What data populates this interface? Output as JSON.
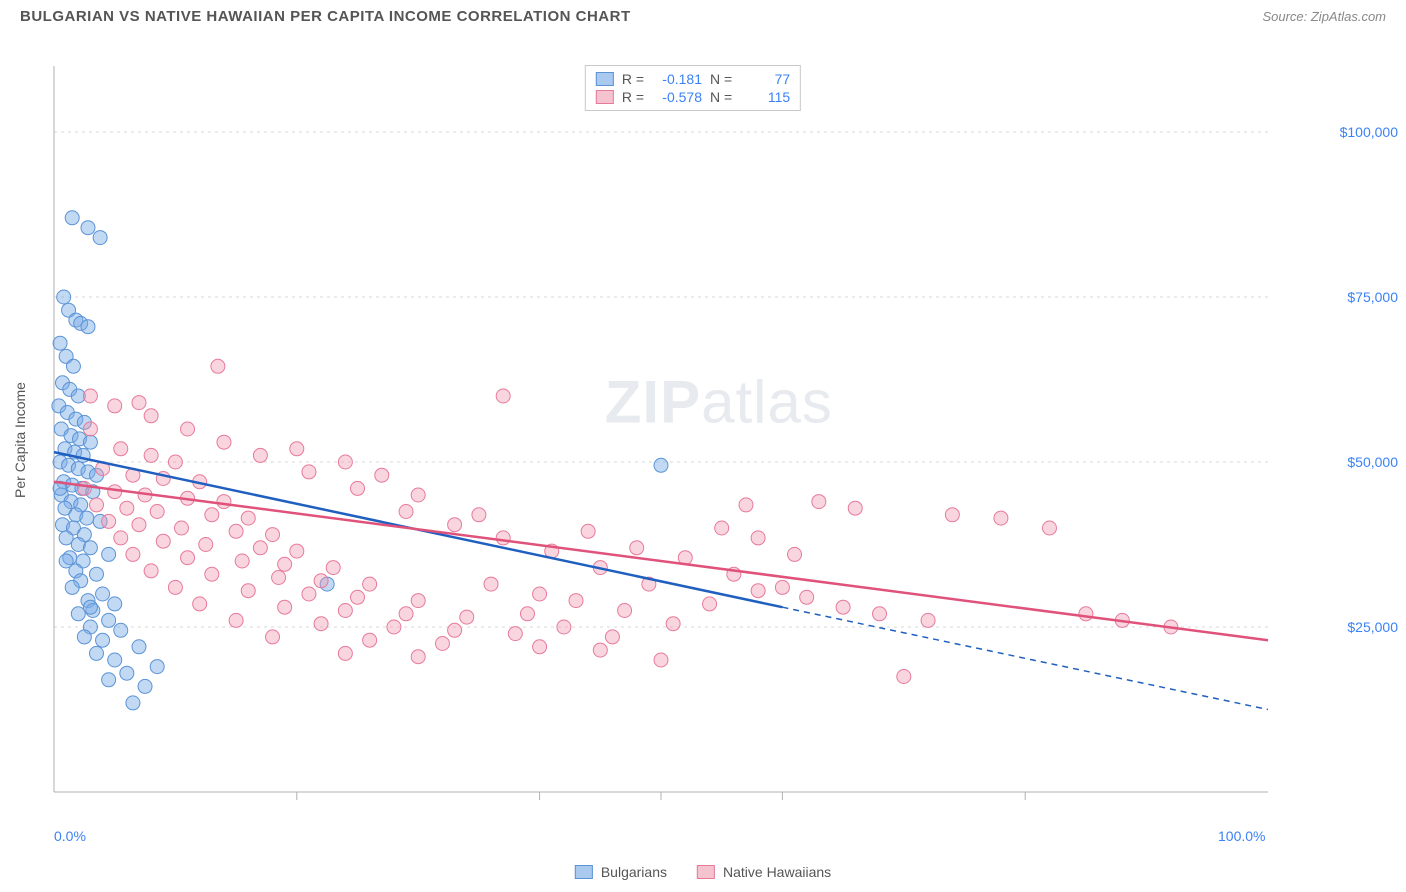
{
  "header": {
    "title": "BULGARIAN VS NATIVE HAWAIIAN PER CAPITA INCOME CORRELATION CHART",
    "source": "Source: ZipAtlas.com"
  },
  "chart": {
    "type": "scatter",
    "ylabel": "Per Capita Income",
    "xlim": [
      0,
      100
    ],
    "ylim": [
      0,
      110000
    ],
    "xtick_labels": [
      "0.0%",
      "100.0%"
    ],
    "xtick_positions": [
      0,
      100
    ],
    "xtick_minor": [
      20,
      40,
      50,
      60,
      80
    ],
    "ytick_labels": [
      "$25,000",
      "$50,000",
      "$75,000",
      "$100,000"
    ],
    "ytick_values": [
      25000,
      50000,
      75000,
      100000
    ],
    "grid_color": "#d8d8d8",
    "axis_color": "#b0b0b0",
    "background_color": "#ffffff",
    "watermark": {
      "zip": "ZIP",
      "atlas": "atlas"
    }
  },
  "series": [
    {
      "name": "Bulgarians",
      "marker_fill": "rgba(120,170,230,0.45)",
      "marker_stroke": "#5b93d6",
      "swatch_fill": "#a9c9ef",
      "swatch_stroke": "#5b93d6",
      "R": "-0.181",
      "N": "77",
      "regression": {
        "color": "#1f5fbf",
        "solid_from": [
          0,
          51500
        ],
        "solid_to": [
          60,
          28000
        ],
        "dash_to": [
          100,
          12500
        ]
      },
      "points": [
        [
          1.5,
          87000
        ],
        [
          2.8,
          85500
        ],
        [
          3.8,
          84000
        ],
        [
          0.8,
          75000
        ],
        [
          1.2,
          73000
        ],
        [
          1.8,
          71500
        ],
        [
          2.2,
          71000
        ],
        [
          2.8,
          70500
        ],
        [
          0.5,
          68000
        ],
        [
          1.0,
          66000
        ],
        [
          1.6,
          64500
        ],
        [
          0.7,
          62000
        ],
        [
          1.3,
          61000
        ],
        [
          2.0,
          60000
        ],
        [
          0.4,
          58500
        ],
        [
          1.1,
          57500
        ],
        [
          1.8,
          56500
        ],
        [
          2.5,
          56000
        ],
        [
          0.6,
          55000
        ],
        [
          1.4,
          54000
        ],
        [
          2.1,
          53500
        ],
        [
          3.0,
          53000
        ],
        [
          0.9,
          52000
        ],
        [
          1.7,
          51500
        ],
        [
          2.4,
          51000
        ],
        [
          0.5,
          50000
        ],
        [
          1.2,
          49500
        ],
        [
          2.0,
          49000
        ],
        [
          2.8,
          48500
        ],
        [
          3.5,
          48000
        ],
        [
          0.8,
          47000
        ],
        [
          1.5,
          46500
        ],
        [
          2.3,
          46000
        ],
        [
          3.2,
          45500
        ],
        [
          0.6,
          45000
        ],
        [
          1.4,
          44000
        ],
        [
          2.2,
          43500
        ],
        [
          0.9,
          43000
        ],
        [
          1.8,
          42000
        ],
        [
          2.7,
          41500
        ],
        [
          3.8,
          41000
        ],
        [
          0.7,
          40500
        ],
        [
          1.6,
          40000
        ],
        [
          2.5,
          39000
        ],
        [
          1.0,
          38500
        ],
        [
          2.0,
          37500
        ],
        [
          3.0,
          37000
        ],
        [
          4.5,
          36000
        ],
        [
          1.3,
          35500
        ],
        [
          2.4,
          35000
        ],
        [
          1.8,
          33500
        ],
        [
          3.5,
          33000
        ],
        [
          2.2,
          32000
        ],
        [
          1.5,
          31000
        ],
        [
          4.0,
          30000
        ],
        [
          2.8,
          29000
        ],
        [
          5.0,
          28500
        ],
        [
          3.2,
          27500
        ],
        [
          2.0,
          27000
        ],
        [
          4.5,
          26000
        ],
        [
          22.5,
          31500
        ],
        [
          3.0,
          25000
        ],
        [
          5.5,
          24500
        ],
        [
          2.5,
          23500
        ],
        [
          4.0,
          23000
        ],
        [
          7.0,
          22000
        ],
        [
          3.5,
          21000
        ],
        [
          5.0,
          20000
        ],
        [
          8.5,
          19000
        ],
        [
          6.0,
          18000
        ],
        [
          50.0,
          49500
        ],
        [
          4.5,
          17000
        ],
        [
          7.5,
          16000
        ],
        [
          6.5,
          13500
        ],
        [
          3.0,
          28000
        ],
        [
          1.0,
          35000
        ],
        [
          0.5,
          46000
        ]
      ]
    },
    {
      "name": "Native Hawaiians",
      "marker_fill": "rgba(240,150,175,0.40)",
      "marker_stroke": "#e77a9a",
      "swatch_fill": "#f5c2d0",
      "swatch_stroke": "#e77a9a",
      "R": "-0.578",
      "N": "115",
      "regression": {
        "color": "#e0527a",
        "solid_from": [
          0,
          47000
        ],
        "solid_to": [
          100,
          23000
        ],
        "dash_to": null
      },
      "points": [
        [
          7.0,
          59000
        ],
        [
          13.5,
          64500
        ],
        [
          3.0,
          55000
        ],
        [
          5.5,
          52000
        ],
        [
          8.0,
          51000
        ],
        [
          10.0,
          50000
        ],
        [
          4.0,
          49000
        ],
        [
          6.5,
          48000
        ],
        [
          9.0,
          47500
        ],
        [
          12.0,
          47000
        ],
        [
          2.5,
          46000
        ],
        [
          5.0,
          45500
        ],
        [
          7.5,
          45000
        ],
        [
          11.0,
          44500
        ],
        [
          14.0,
          44000
        ],
        [
          3.5,
          43500
        ],
        [
          6.0,
          43000
        ],
        [
          8.5,
          42500
        ],
        [
          13.0,
          42000
        ],
        [
          16.0,
          41500
        ],
        [
          4.5,
          41000
        ],
        [
          7.0,
          40500
        ],
        [
          10.5,
          40000
        ],
        [
          15.0,
          39500
        ],
        [
          18.0,
          39000
        ],
        [
          5.5,
          38500
        ],
        [
          9.0,
          38000
        ],
        [
          12.5,
          37500
        ],
        [
          17.0,
          37000
        ],
        [
          20.0,
          36500
        ],
        [
          6.5,
          36000
        ],
        [
          11.0,
          35500
        ],
        [
          15.5,
          35000
        ],
        [
          19.0,
          34500
        ],
        [
          23.0,
          34000
        ],
        [
          8.0,
          33500
        ],
        [
          13.0,
          33000
        ],
        [
          18.5,
          32500
        ],
        [
          22.0,
          32000
        ],
        [
          26.0,
          31500
        ],
        [
          10.0,
          31000
        ],
        [
          16.0,
          30500
        ],
        [
          21.0,
          30000
        ],
        [
          25.0,
          29500
        ],
        [
          30.0,
          29000
        ],
        [
          12.0,
          28500
        ],
        [
          19.0,
          28000
        ],
        [
          24.0,
          27500
        ],
        [
          29.0,
          27000
        ],
        [
          34.0,
          26500
        ],
        [
          15.0,
          26000
        ],
        [
          22.0,
          25500
        ],
        [
          28.0,
          25000
        ],
        [
          33.0,
          24500
        ],
        [
          38.0,
          24000
        ],
        [
          18.0,
          23500
        ],
        [
          26.0,
          23000
        ],
        [
          32.0,
          22500
        ],
        [
          40.0,
          22000
        ],
        [
          45.0,
          21500
        ],
        [
          24.0,
          21000
        ],
        [
          30.0,
          20500
        ],
        [
          50.0,
          20000
        ],
        [
          70.0,
          17500
        ],
        [
          37.0,
          60000
        ],
        [
          44.0,
          39500
        ],
        [
          48.0,
          37000
        ],
        [
          52.0,
          35500
        ],
        [
          56.0,
          33000
        ],
        [
          58.0,
          30500
        ],
        [
          62.0,
          29500
        ],
        [
          65.0,
          28000
        ],
        [
          68.0,
          27000
        ],
        [
          72.0,
          26000
        ],
        [
          55.0,
          40000
        ],
        [
          60.0,
          31000
        ],
        [
          63.0,
          44000
        ],
        [
          66.0,
          43000
        ],
        [
          74.0,
          42000
        ],
        [
          78.0,
          41500
        ],
        [
          82.0,
          40000
        ],
        [
          85.0,
          27000
        ],
        [
          88.0,
          26000
        ],
        [
          92.0,
          25000
        ],
        [
          43.0,
          29000
        ],
        [
          47.0,
          27500
        ],
        [
          51.0,
          25500
        ],
        [
          36.0,
          31500
        ],
        [
          40.0,
          30000
        ],
        [
          35.0,
          42000
        ],
        [
          30.0,
          45000
        ],
        [
          27.0,
          48000
        ],
        [
          24.0,
          50000
        ],
        [
          20.0,
          52000
        ],
        [
          42.0,
          25000
        ],
        [
          46.0,
          23500
        ],
        [
          39.0,
          27000
        ],
        [
          33.0,
          40500
        ],
        [
          58.0,
          38500
        ],
        [
          61.0,
          36000
        ],
        [
          54.0,
          28500
        ],
        [
          49.0,
          31500
        ],
        [
          45.0,
          34000
        ],
        [
          41.0,
          36500
        ],
        [
          37.0,
          38500
        ],
        [
          29.0,
          42500
        ],
        [
          25.0,
          46000
        ],
        [
          21.0,
          48500
        ],
        [
          17.0,
          51000
        ],
        [
          14.0,
          53000
        ],
        [
          11.0,
          55000
        ],
        [
          8.0,
          57000
        ],
        [
          5.0,
          58500
        ],
        [
          3.0,
          60000
        ],
        [
          57.0,
          43500
        ]
      ]
    }
  ],
  "legend": {
    "series1_label": "Bulgarians",
    "series2_label": "Native Hawaiians",
    "R_label": "R =",
    "N_label": "N ="
  }
}
